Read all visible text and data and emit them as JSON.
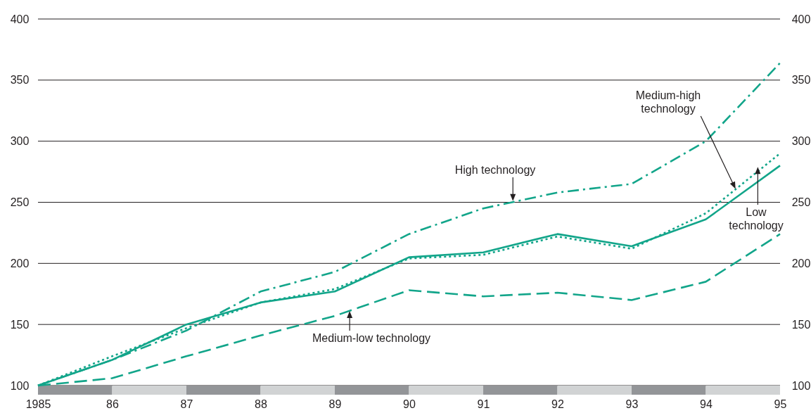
{
  "chart_data": {
    "type": "line",
    "x": [
      1985,
      1986,
      1987,
      1988,
      1989,
      1990,
      1991,
      1992,
      1993,
      1994,
      1995
    ],
    "xlim": [
      1985,
      1995
    ],
    "xticks": [
      {
        "value": 1985,
        "label": "1985"
      },
      {
        "value": 1986,
        "label": "86"
      },
      {
        "value": 1987,
        "label": "87"
      },
      {
        "value": 1988,
        "label": "88"
      },
      {
        "value": 1989,
        "label": "89"
      },
      {
        "value": 1990,
        "label": "90"
      },
      {
        "value": 1991,
        "label": "91"
      },
      {
        "value": 1992,
        "label": "92"
      },
      {
        "value": 1993,
        "label": "93"
      },
      {
        "value": 1994,
        "label": "94"
      },
      {
        "value": 1995,
        "label": "95"
      }
    ],
    "ylim": [
      100,
      400
    ],
    "yticks": [
      100,
      150,
      200,
      250,
      300,
      350,
      400
    ],
    "y2lim": [
      100,
      400
    ],
    "y2ticks": [
      100,
      150,
      200,
      250,
      300,
      350,
      400
    ],
    "grid": "y",
    "marker": "none",
    "series": [
      {
        "color": "#12a58a",
        "line_style": "dashdot",
        "values": [
          100,
          121,
          145,
          177,
          193,
          224,
          245,
          258,
          265,
          300,
          364
        ]
      },
      {
        "color": "#12a58a",
        "line_style": "solid",
        "values": [
          100,
          121,
          150,
          168,
          177,
          205,
          209,
          224,
          214,
          236,
          280
        ]
      },
      {
        "color": "#12a58a",
        "line_style": "dotted",
        "values": [
          100,
          124,
          147,
          168,
          179,
          204,
          207,
          222,
          212,
          241,
          290
        ]
      },
      {
        "color": "#12a58a",
        "line_style": "dashed",
        "values": [
          100,
          106,
          124,
          141,
          157,
          178,
          173,
          176,
          170,
          185,
          224
        ]
      }
    ],
    "annotations": [
      {
        "text": "High technology",
        "x": 1991.4,
        "y": 251
      },
      {
        "text": "Medium-high technology",
        "x": 1994.4,
        "y": 261
      },
      {
        "text": "Low technology",
        "x": 1994.7,
        "y": 279
      },
      {
        "text": "Medium-low technology",
        "x": 1989.2,
        "y": 161
      }
    ]
  }
}
